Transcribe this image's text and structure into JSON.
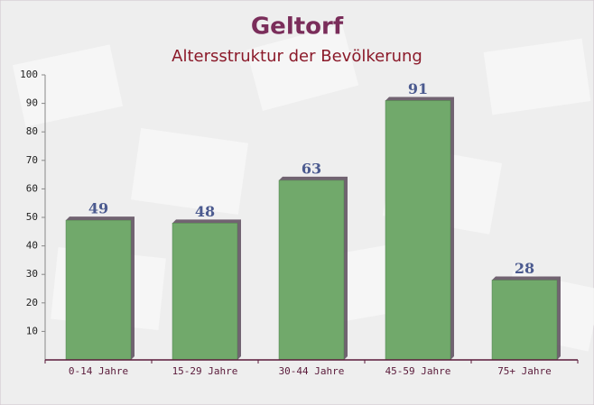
{
  "chart_data": {
    "type": "bar",
    "title": "Geltorf",
    "subtitle": "Altersstruktur der Bevölkerung",
    "categories": [
      "0-14 Jahre",
      "15-29 Jahre",
      "30-44 Jahre",
      "45-59 Jahre",
      "75+ Jahre"
    ],
    "values": [
      49,
      48,
      63,
      91,
      28
    ],
    "color": "#6aa564",
    "ylim": [
      0,
      100
    ],
    "yticks": [
      10,
      20,
      30,
      40,
      50,
      60,
      70,
      80,
      90,
      100
    ],
    "grid": false
  }
}
